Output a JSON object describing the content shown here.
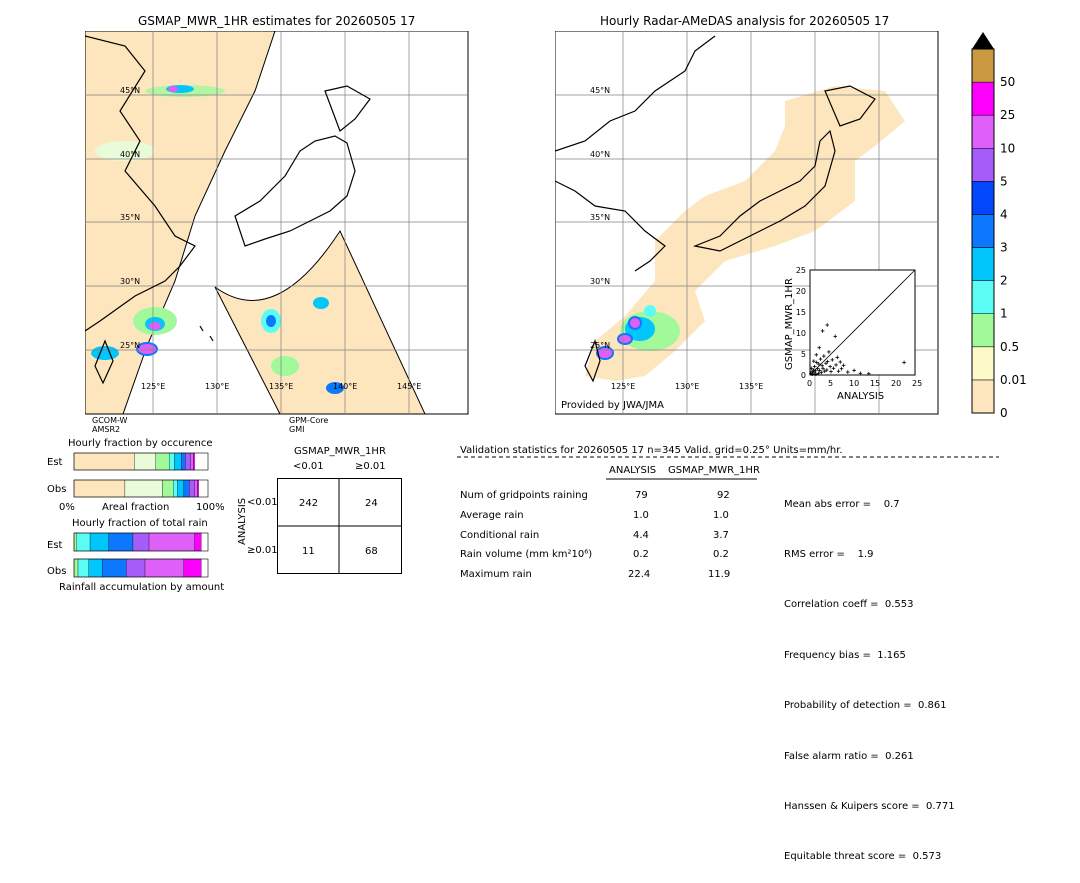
{
  "left_map": {
    "title": "GSMAP_MWR_1HR estimates for 20260505 17",
    "lat_labels": [
      "45°N",
      "40°N",
      "35°N",
      "30°N",
      "25°N"
    ],
    "lon_labels": [
      "125°E",
      "130°E",
      "135°E",
      "140°E",
      "145°E"
    ],
    "sat_left": [
      "GCOM-W",
      "AMSR2"
    ],
    "sat_right": [
      "GPM-Core",
      "GMI"
    ]
  },
  "right_map": {
    "title": "Hourly Radar-AMeDAS analysis for 20260505 17",
    "lat_labels": [
      "45°N",
      "40°N",
      "35°N",
      "30°N",
      "25°N"
    ],
    "lon_labels": [
      "125°E",
      "130°E",
      "135°E"
    ],
    "credit": "Provided by JWA/JMA"
  },
  "colorbar": {
    "labels": [
      "0",
      "0.01",
      "0.5",
      "1",
      "2",
      "3",
      "4",
      "5",
      "10",
      "25",
      "50"
    ],
    "colors": [
      "#fde6be",
      "#fdf9c8",
      "#a2f99a",
      "#5bfcf3",
      "#00c6fc",
      "#0b78fe",
      "#0247fc",
      "#a55cf9",
      "#df60f8",
      "#fd00fd",
      "#c99a3f"
    ]
  },
  "chart_data": [
    {
      "type": "scatter",
      "title": "",
      "xlabel": "ANALYSIS",
      "ylabel": "GSMAP_MWR_1HR",
      "xlim": [
        0,
        25
      ],
      "ylim": [
        0,
        25
      ],
      "xticks": [
        "0",
        "5",
        "10",
        "15",
        "20",
        "25"
      ],
      "yticks": [
        "0",
        "5",
        "10",
        "15",
        "20",
        "25"
      ],
      "diagonal": true,
      "points": [
        [
          0.2,
          0.3
        ],
        [
          0.5,
          0.8
        ],
        [
          0.6,
          0.2
        ],
        [
          0.8,
          1.2
        ],
        [
          1.0,
          0.5
        ],
        [
          1.1,
          2.0
        ],
        [
          1.3,
          1.0
        ],
        [
          1.4,
          0.2
        ],
        [
          1.6,
          3.0
        ],
        [
          1.8,
          1.5
        ],
        [
          2.0,
          0.4
        ],
        [
          2.1,
          2.6
        ],
        [
          2.3,
          1.1
        ],
        [
          2.5,
          3.8
        ],
        [
          2.7,
          0.6
        ],
        [
          2.9,
          2.2
        ],
        [
          3.1,
          1.5
        ],
        [
          3.3,
          4.5
        ],
        [
          3.5,
          0.9
        ],
        [
          3.8,
          2.8
        ],
        [
          4.0,
          1.2
        ],
        [
          4.2,
          3.2
        ],
        [
          4.5,
          5.5
        ],
        [
          4.8,
          2.0
        ],
        [
          5.0,
          0.8
        ],
        [
          5.3,
          3.6
        ],
        [
          5.6,
          1.6
        ],
        [
          6.0,
          9.2
        ],
        [
          6.2,
          2.4
        ],
        [
          6.5,
          4.2
        ],
        [
          6.8,
          0.9
        ],
        [
          7.2,
          3.1
        ],
        [
          7.5,
          1.5
        ],
        [
          8.0,
          2.3
        ],
        [
          9.0,
          0.7
        ],
        [
          10.5,
          1.1
        ],
        [
          12.0,
          0.4
        ],
        [
          14.0,
          0.3
        ],
        [
          3.0,
          10.5
        ],
        [
          4.1,
          11.9
        ],
        [
          2.2,
          6.5
        ],
        [
          1.5,
          4.8
        ],
        [
          22.4,
          3.0
        ],
        [
          0.3,
          1.6
        ],
        [
          0.9,
          3.3
        ]
      ]
    },
    {
      "type": "bar",
      "title": "Hourly fraction by occurence",
      "rows": [
        "Est",
        "Obs"
      ],
      "xlabel": "Areal fraction",
      "xtick_labels": [
        "0%",
        "100%"
      ],
      "series": [
        {
          "color": "#fde6be",
          "values": [
            0.45,
            0.38
          ]
        },
        {
          "color": "#fdf9c8",
          "values": [
            0.0,
            0.0
          ]
        },
        {
          "color": "#e9fbd8",
          "values": [
            0.16,
            0.28
          ]
        },
        {
          "color": "#a2f99a",
          "values": [
            0.1,
            0.08
          ]
        },
        {
          "color": "#5bfcf3",
          "values": [
            0.04,
            0.03
          ]
        },
        {
          "color": "#00c6fc",
          "values": [
            0.05,
            0.05
          ]
        },
        {
          "color": "#0b78fe",
          "values": [
            0.03,
            0.04
          ]
        },
        {
          "color": "#a55cf9",
          "values": [
            0.04,
            0.04
          ]
        },
        {
          "color": "#df60f8",
          "values": [
            0.02,
            0.02
          ]
        },
        {
          "color": "#fd00fd",
          "values": [
            0.01,
            0.01
          ]
        }
      ]
    },
    {
      "type": "bar",
      "title": "Hourly fraction of total rain",
      "rows": [
        "Est",
        "Obs"
      ],
      "xlabel": "Rainfall accumulation by amount",
      "series": [
        {
          "color": "#a2f99a",
          "values": [
            0.02,
            0.03
          ]
        },
        {
          "color": "#5bfcf3",
          "values": [
            0.1,
            0.08
          ]
        },
        {
          "color": "#00c6fc",
          "values": [
            0.14,
            0.1
          ]
        },
        {
          "color": "#0b78fe",
          "values": [
            0.18,
            0.18
          ]
        },
        {
          "color": "#a55cf9",
          "values": [
            0.12,
            0.14
          ]
        },
        {
          "color": "#df60f8",
          "values": [
            0.34,
            0.29
          ]
        },
        {
          "color": "#fd00fd",
          "values": [
            0.05,
            0.13
          ]
        }
      ]
    },
    {
      "type": "table",
      "title": "GSMAP_MWR_1HR",
      "col_headers": [
        "<0.01",
        "≥0.01"
      ],
      "row_axis_label": "ANALYSIS",
      "row_headers": [
        "<0.01",
        "≥0.01"
      ],
      "cells": [
        [
          "242",
          "24"
        ],
        [
          "11",
          "68"
        ]
      ]
    }
  ],
  "validation": {
    "header": "Validation statistics for 20260505 17  n=345 Valid. grid=0.25° Units=mm/hr.",
    "col_analysis": "ANALYSIS",
    "col_gsmap": "GSMAP_MWR_1HR",
    "rows": [
      {
        "label": "Num of gridpoints raining",
        "analysis": "79",
        "gsmap": "92"
      },
      {
        "label": "Average rain",
        "analysis": "1.0",
        "gsmap": "1.0"
      },
      {
        "label": "Conditional rain",
        "analysis": "4.4",
        "gsmap": "3.7"
      },
      {
        "label": "Rain volume (mm km²10⁶)",
        "analysis": "0.2",
        "gsmap": "0.2"
      },
      {
        "label": "Maximum rain",
        "analysis": "22.4",
        "gsmap": "11.9"
      }
    ],
    "scores": [
      "Mean abs error =    0.7",
      "RMS error =    1.9",
      "Correlation coeff =  0.553",
      "Frequency bias =  1.165",
      "Probability of detection =  0.861",
      "False alarm ratio =  0.261",
      "Hanssen & Kuipers score =  0.771",
      "Equitable threat score =  0.573"
    ]
  }
}
